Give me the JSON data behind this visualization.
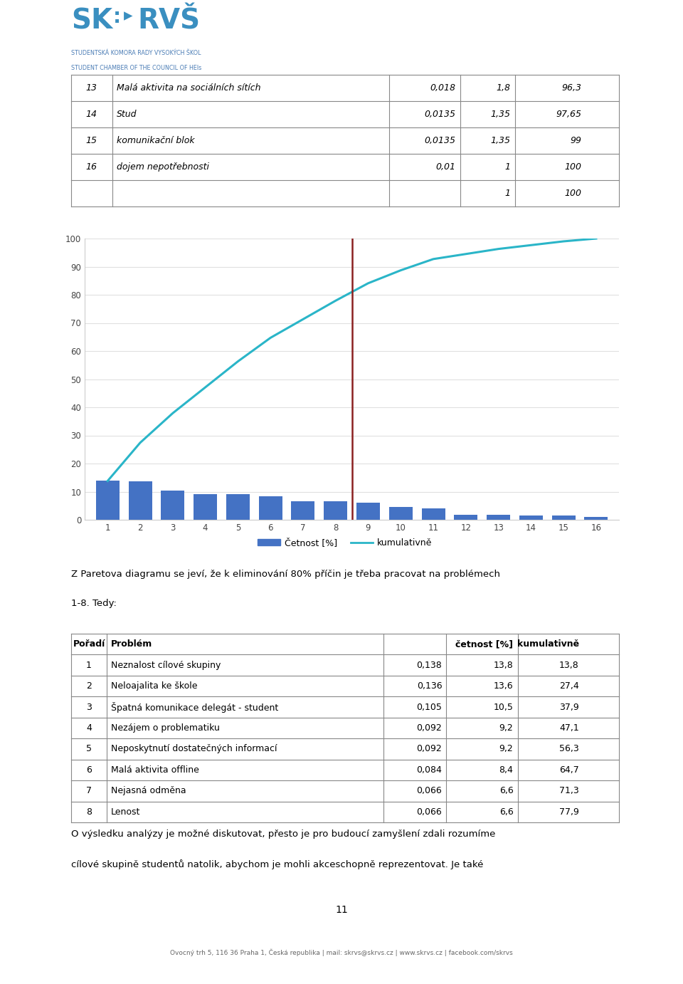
{
  "page_bg": "#ffffff",
  "logo_text_line1": "STUDENTSKÁ KOMORA RADY VYSOKÝCH ŠKOL",
  "logo_text_line2": "STUDENT CHAMBER OF THE COUNCIL OF HEIs",
  "top_table_rows": [
    [
      "13",
      "Malá aktivita na sociálních sítích",
      "0,018",
      "1,8",
      "96,3"
    ],
    [
      "14",
      "Stud",
      "0,0135",
      "1,35",
      "97,65"
    ],
    [
      "15",
      "komunikační blok",
      "0,0135",
      "1,35",
      "99"
    ],
    [
      "16",
      "dojem nepotřebnosti",
      "0,01",
      "1",
      "100"
    ],
    [
      "",
      "",
      "",
      "1",
      "100"
    ]
  ],
  "bar_values": [
    13.8,
    13.6,
    10.5,
    9.2,
    9.2,
    8.4,
    6.6,
    6.6,
    6.2,
    4.6,
    4.0,
    1.8,
    1.8,
    1.5,
    1.5,
    1.0
  ],
  "cumulative_values": [
    13.8,
    27.4,
    37.9,
    47.1,
    56.3,
    64.7,
    71.3,
    77.9,
    84.1,
    88.7,
    92.7,
    94.5,
    96.3,
    97.65,
    99.0,
    100.0
  ],
  "categories": [
    1,
    2,
    3,
    4,
    5,
    6,
    7,
    8,
    9,
    10,
    11,
    12,
    13,
    14,
    15,
    16
  ],
  "bar_color": "#4472c4",
  "line_color": "#2ab5c8",
  "vline_color": "#8b2020",
  "vline_x": 8.5,
  "ylim": [
    0,
    100
  ],
  "yticks": [
    0,
    10,
    20,
    30,
    40,
    50,
    60,
    70,
    80,
    90,
    100
  ],
  "legend_bar_label": "Četnost [%]",
  "legend_line_label": "kumulativně",
  "pareto_text_line1": "Z Paretova diagramu se jeví, že k eliminování 80% příčin je třeba pracovat na problémech",
  "pareto_text_line2": "1-8. Tedy:",
  "bottom_table_col_headers": [
    "Pořadí",
    "Problém",
    "",
    "četnost [%]",
    "kumulativně"
  ],
  "bottom_table_rows": [
    [
      "1",
      "Neznalost cílové skupiny",
      "0,138",
      "13,8",
      "13,8"
    ],
    [
      "2",
      "Neloajalita ke škole",
      "0,136",
      "13,6",
      "27,4"
    ],
    [
      "3",
      "Špatná komunikace delegát - student",
      "0,105",
      "10,5",
      "37,9"
    ],
    [
      "4",
      "Nezájem o problematiku",
      "0,092",
      "9,2",
      "47,1"
    ],
    [
      "5",
      "Neposkytnutí dostatečných informací",
      "0,092",
      "9,2",
      "56,3"
    ],
    [
      "6",
      "Malá aktivita offline",
      "0,084",
      "8,4",
      "64,7"
    ],
    [
      "7",
      "Nejasná odměna",
      "0,066",
      "6,6",
      "71,3"
    ],
    [
      "8",
      "Lenost",
      "0,066",
      "6,6",
      "77,9"
    ]
  ],
  "footer_text_line1": "O výsledku analýzy je možné diskutovat, přesto je pro budoucí zamyšlení zdali rozumíme",
  "footer_text_line2": "cílové skupině studentů natolik, abychom je mohli akceschopně reprezentovat. Je také",
  "page_number": "11",
  "footer_contact": "Ovocný trh 5, 116 36 Praha 1, Česká republika | mail: skrvs@skrvs.cz | www.skrvs.cz | facebook.com/skrvs"
}
